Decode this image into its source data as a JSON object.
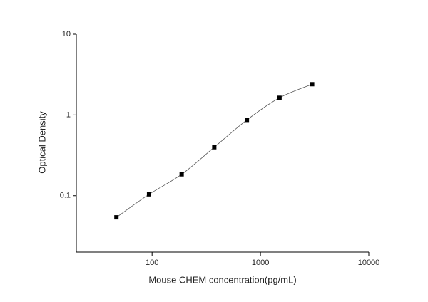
{
  "chart_data": {
    "type": "scatter",
    "x_label": "Mouse CHEM concentration(pg/mL)",
    "y_label": "Optical Density",
    "x": [
      46.875,
      93.75,
      187.5,
      375,
      750,
      1500,
      3000
    ],
    "values": [
      0.054,
      0.104,
      0.184,
      0.398,
      0.867,
      1.63,
      2.4
    ],
    "color": "#000000",
    "fit_line": true,
    "xscale": "log",
    "yscale": "log",
    "xlim": [
      20,
      10000
    ],
    "xticks": [
      100,
      1000,
      10000
    ],
    "ylim": [
      0.02,
      10
    ],
    "yticks": [
      0.1,
      1,
      10
    ]
  }
}
